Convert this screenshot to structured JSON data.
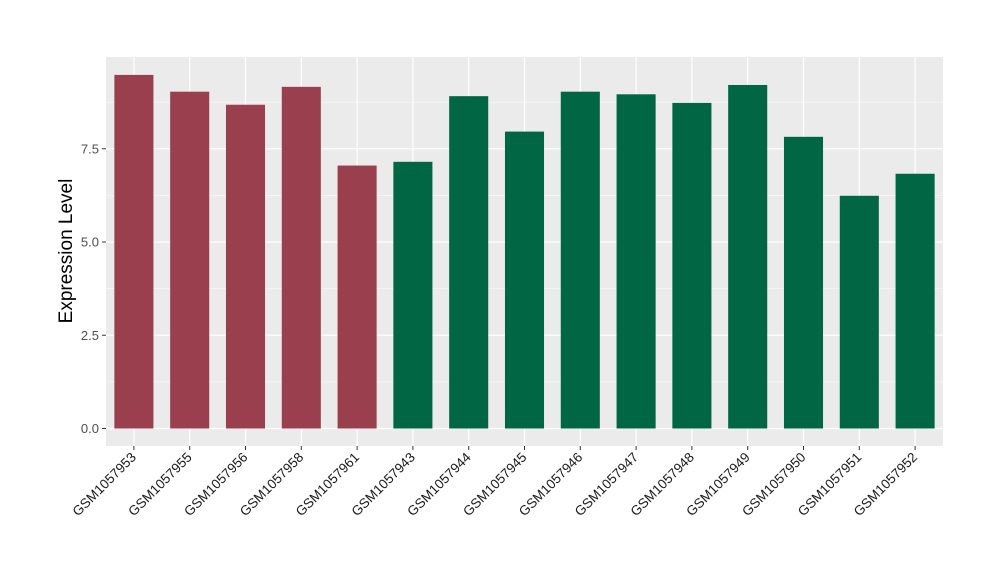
{
  "chart_data": {
    "type": "bar",
    "ylabel": "Expression Level",
    "xlabel": "",
    "ylim": [
      0,
      9.96
    ],
    "yticks": [
      0.0,
      2.5,
      5.0,
      7.5
    ],
    "ytick_labels": [
      "0.0",
      "2.5",
      "5.0",
      "7.5"
    ],
    "grid": true,
    "categories": [
      "GSM1057953",
      "GSM1057955",
      "GSM1057956",
      "GSM1057958",
      "GSM1057961",
      "GSM1057943",
      "GSM1057944",
      "GSM1057945",
      "GSM1057946",
      "GSM1057947",
      "GSM1057948",
      "GSM1057949",
      "GSM1057950",
      "GSM1057951",
      "GSM1057952"
    ],
    "values": [
      9.48,
      9.03,
      8.68,
      9.16,
      7.05,
      7.15,
      8.91,
      7.96,
      9.03,
      8.96,
      8.73,
      9.21,
      7.82,
      6.24,
      6.83
    ],
    "group": [
      0,
      0,
      0,
      0,
      0,
      1,
      1,
      1,
      1,
      1,
      1,
      1,
      1,
      1,
      1
    ],
    "colors": [
      "#9a3f4e",
      "#006644"
    ],
    "panel_background": "#ebebeb",
    "gridline_color": "#ffffff"
  }
}
